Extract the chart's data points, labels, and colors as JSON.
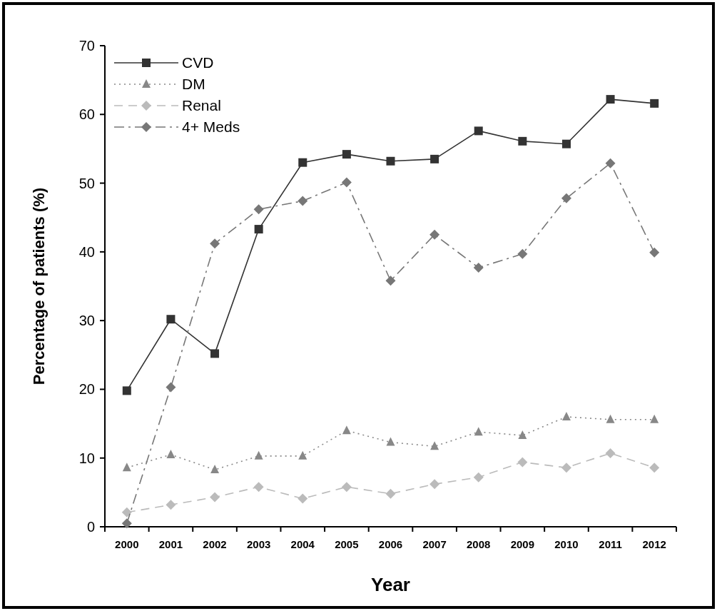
{
  "chart_data": {
    "type": "line",
    "xlabel": "Year",
    "ylabel": "Percentage of patients (%)",
    "categories": [
      "2000",
      "2001",
      "2002",
      "2003",
      "2004",
      "2005",
      "2006",
      "2007",
      "2008",
      "2009",
      "2010",
      "2011",
      "2012"
    ],
    "ylim": [
      0,
      70
    ],
    "yticks": [
      0,
      10,
      20,
      30,
      40,
      50,
      60,
      70
    ],
    "grid": false,
    "legend": "top left",
    "series": [
      {
        "name": "CVD",
        "color": "#333333",
        "marker": "square",
        "line_style": "solid",
        "values": [
          19.8,
          30.2,
          25.2,
          43.3,
          53.0,
          54.2,
          53.2,
          53.5,
          57.6,
          56.1,
          55.7,
          62.2,
          61.6
        ]
      },
      {
        "name": "DM",
        "color": "#888888",
        "marker": "triangle",
        "line_style": "dotted",
        "values": [
          8.6,
          10.5,
          8.3,
          10.3,
          10.3,
          14.0,
          12.3,
          11.7,
          13.8,
          13.3,
          16.0,
          15.6,
          15.6
        ]
      },
      {
        "name": "Renal",
        "color": "#bbbbbb",
        "marker": "diamond",
        "line_style": "dashed",
        "values": [
          2.1,
          3.2,
          4.3,
          5.8,
          4.1,
          5.8,
          4.8,
          6.2,
          7.2,
          9.4,
          8.6,
          10.7,
          8.6
        ]
      },
      {
        "name": "4+ Meds",
        "color": "#777777",
        "marker": "diamond",
        "line_style": "dashdot",
        "values": [
          0.5,
          20.3,
          41.2,
          46.2,
          47.4,
          50.1,
          35.8,
          42.5,
          37.7,
          39.7,
          47.8,
          52.9,
          39.9
        ]
      }
    ]
  }
}
